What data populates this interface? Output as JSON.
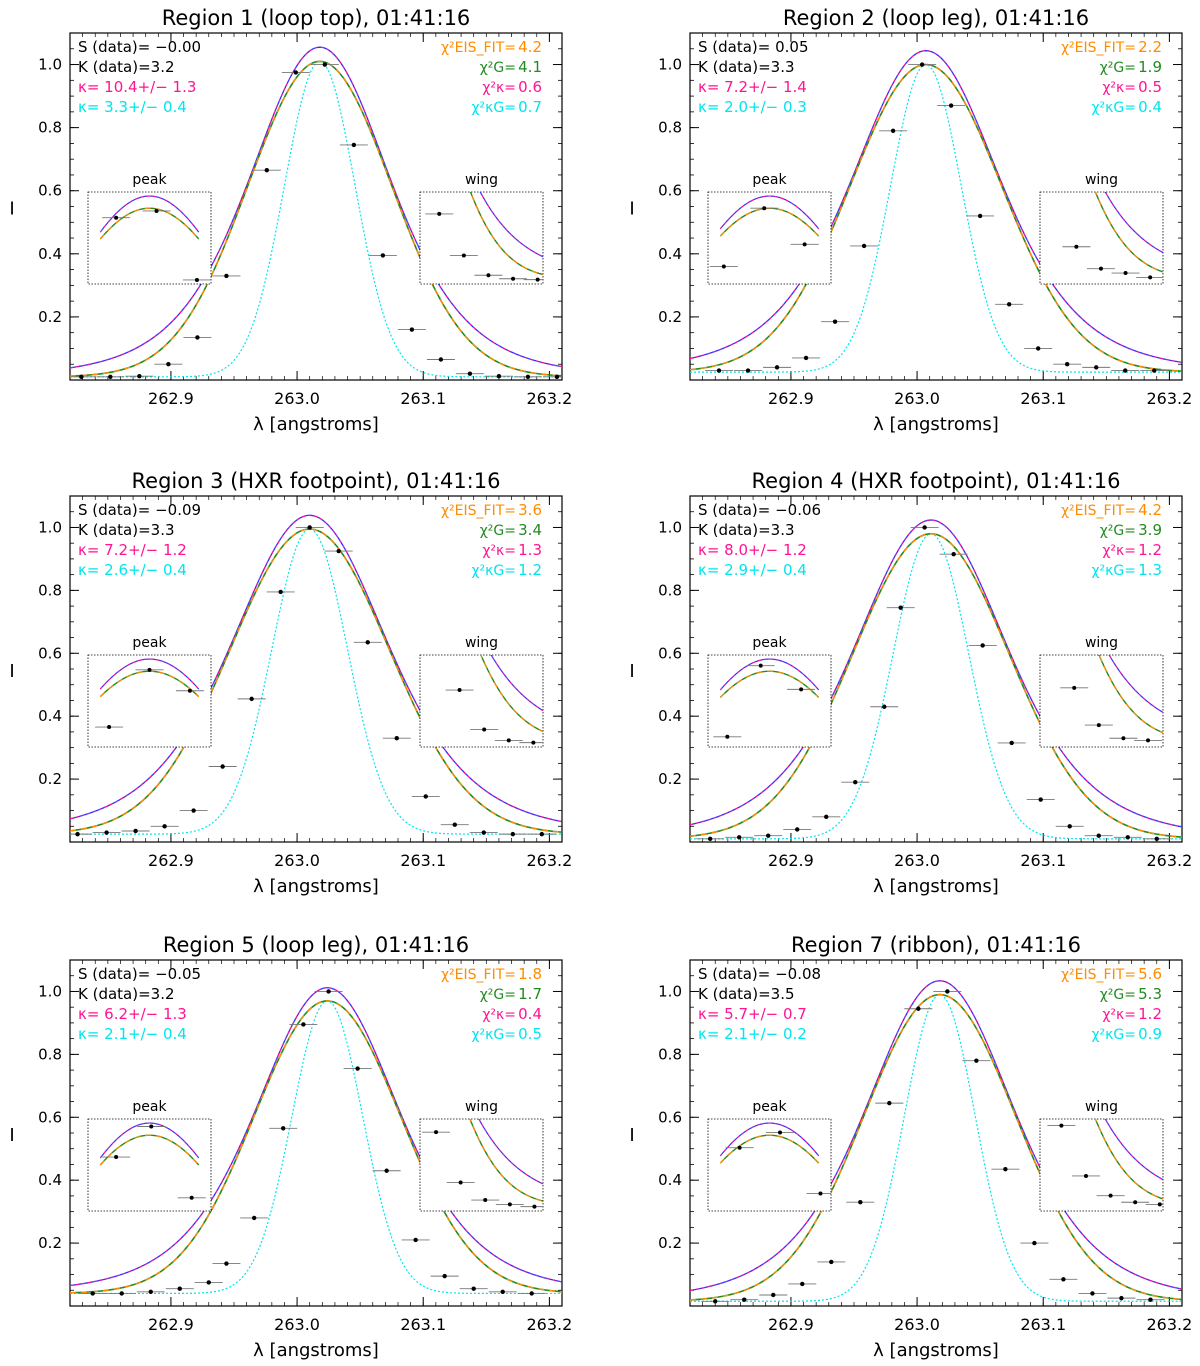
{
  "figure": {
    "ylabel": "I",
    "xlabel": "λ [angstroms]",
    "inset_peak_label": "peak",
    "inset_wing_label": "wing"
  },
  "colors": {
    "data": "#000000",
    "eis_fit": "#ff8c00",
    "gauss": "#228b22",
    "kappa": "#ff1493",
    "kappa_gauss": "#00e5ee",
    "kappa_curve": "#3030ff",
    "stats_black": "#000000"
  },
  "chart_data": [
    {
      "type": "line",
      "title": "Region 1 (loop top), 01:41:16",
      "xlabel": "λ [angstroms]",
      "ylabel": "I",
      "xlim": [
        262.82,
        263.21
      ],
      "ylim": [
        0.0,
        1.1
      ],
      "xticks": [
        "262.9",
        "263.0",
        "263.1",
        "263.2"
      ],
      "yticks": [
        "0.2",
        "0.4",
        "0.6",
        "0.8",
        "1.0"
      ],
      "stats": {
        "s_data": "S (data)= −0.00",
        "k_data": "K (data)=3.2",
        "kappa": "κ=  10.4+/−  1.3",
        "kappa_g": "κ=  3.3+/−  0.4",
        "chi_eis_label": "χ²EIS_FIT=",
        "chi_eis": "4.2",
        "chi_g_label": "χ²G=",
        "chi_g": "4.1",
        "chi_k_label": "χ²κ=",
        "chi_k": "0.6",
        "chi_kg_label": "χ²κG=",
        "chi_kg": "0.7"
      },
      "model": {
        "center": 263.018,
        "width": 0.057,
        "bg": 0.01,
        "amp": 1.0,
        "kg_width": 0.028
      },
      "data_points": [
        {
          "x": 262.829,
          "y": 0.01
        },
        {
          "x": 262.852,
          "y": 0.01
        },
        {
          "x": 262.875,
          "y": 0.012
        },
        {
          "x": 262.898,
          "y": 0.05
        },
        {
          "x": 262.921,
          "y": 0.135
        },
        {
          "x": 262.944,
          "y": 0.33
        },
        {
          "x": 262.976,
          "y": 0.665
        },
        {
          "x": 262.999,
          "y": 0.975
        },
        {
          "x": 263.022,
          "y": 1.0
        },
        {
          "x": 263.045,
          "y": 0.745
        },
        {
          "x": 263.068,
          "y": 0.395
        },
        {
          "x": 263.091,
          "y": 0.16
        },
        {
          "x": 263.114,
          "y": 0.065
        },
        {
          "x": 263.137,
          "y": 0.02
        },
        {
          "x": 263.16,
          "y": 0.012
        },
        {
          "x": 263.183,
          "y": 0.01
        },
        {
          "x": 263.206,
          "y": 0.01
        }
      ]
    },
    {
      "type": "line",
      "title": "Region 2 (loop leg), 01:41:16",
      "xlabel": "λ [angstroms]",
      "ylabel": "I",
      "xlim": [
        262.82,
        263.21
      ],
      "ylim": [
        0.0,
        1.1
      ],
      "xticks": [
        "262.9",
        "263.0",
        "263.1",
        "263.2"
      ],
      "yticks": [
        "0.2",
        "0.4",
        "0.6",
        "0.8",
        "1.0"
      ],
      "stats": {
        "s_data": "S (data)=  0.05",
        "k_data": "K (data)=3.3",
        "kappa": "κ=  7.2+/−  1.4",
        "kappa_g": "κ=  2.0+/−  0.3",
        "chi_eis_label": "χ²EIS_FIT=",
        "chi_eis": "2.2",
        "chi_g_label": "χ²G=",
        "chi_g": "1.9",
        "chi_k_label": "χ²κ=",
        "chi_k": "0.5",
        "chi_kg_label": "χ²κG=",
        "chi_kg": "0.4"
      },
      "model": {
        "center": 263.007,
        "width": 0.06,
        "bg": 0.025,
        "amp": 0.975,
        "kg_width": 0.028
      },
      "data_points": [
        {
          "x": 262.843,
          "y": 0.03
        },
        {
          "x": 262.866,
          "y": 0.03
        },
        {
          "x": 262.889,
          "y": 0.04
        },
        {
          "x": 262.912,
          "y": 0.07
        },
        {
          "x": 262.935,
          "y": 0.185
        },
        {
          "x": 262.958,
          "y": 0.425
        },
        {
          "x": 262.981,
          "y": 0.79
        },
        {
          "x": 263.004,
          "y": 1.0
        },
        {
          "x": 263.027,
          "y": 0.87
        },
        {
          "x": 263.05,
          "y": 0.52
        },
        {
          "x": 263.073,
          "y": 0.24
        },
        {
          "x": 263.096,
          "y": 0.1
        },
        {
          "x": 263.119,
          "y": 0.05
        },
        {
          "x": 263.142,
          "y": 0.04
        },
        {
          "x": 263.165,
          "y": 0.03
        },
        {
          "x": 263.188,
          "y": 0.03
        }
      ]
    },
    {
      "type": "line",
      "title": "Region 3 (HXR footpoint), 01:41:16",
      "xlabel": "λ [angstroms]",
      "ylabel": "I",
      "xlim": [
        262.82,
        263.21
      ],
      "ylim": [
        0.0,
        1.1
      ],
      "xticks": [
        "262.9",
        "263.0",
        "263.1",
        "263.2"
      ],
      "yticks": [
        "0.2",
        "0.4",
        "0.6",
        "0.8",
        "1.0"
      ],
      "stats": {
        "s_data": "S (data)= −0.09",
        "k_data": "K (data)=3.3",
        "kappa": "κ=  7.2+/−  1.2",
        "kappa_g": "κ=  2.6+/−  0.4",
        "chi_eis_label": "χ²EIS_FIT=",
        "chi_eis": "3.6",
        "chi_g_label": "χ²G=",
        "chi_g": "3.4",
        "chi_k_label": "χ²κ=",
        "chi_k": "1.3",
        "chi_kg_label": "χ²κG=",
        "chi_kg": "1.2"
      },
      "model": {
        "center": 263.01,
        "width": 0.063,
        "bg": 0.025,
        "amp": 0.97,
        "kg_width": 0.03
      },
      "data_points": [
        {
          "x": 262.826,
          "y": 0.025
        },
        {
          "x": 262.849,
          "y": 0.03
        },
        {
          "x": 262.872,
          "y": 0.035
        },
        {
          "x": 262.895,
          "y": 0.05
        },
        {
          "x": 262.918,
          "y": 0.1
        },
        {
          "x": 262.941,
          "y": 0.24
        },
        {
          "x": 262.964,
          "y": 0.455
        },
        {
          "x": 262.987,
          "y": 0.795
        },
        {
          "x": 263.01,
          "y": 1.0
        },
        {
          "x": 263.033,
          "y": 0.925
        },
        {
          "x": 263.056,
          "y": 0.635
        },
        {
          "x": 263.079,
          "y": 0.33
        },
        {
          "x": 263.102,
          "y": 0.145
        },
        {
          "x": 263.125,
          "y": 0.055
        },
        {
          "x": 263.148,
          "y": 0.03
        },
        {
          "x": 263.171,
          "y": 0.025
        },
        {
          "x": 263.194,
          "y": 0.025
        }
      ]
    },
    {
      "type": "line",
      "title": "Region 4 (HXR footpoint), 01:41:16",
      "xlabel": "λ [angstroms]",
      "ylabel": "I",
      "xlim": [
        262.82,
        263.21
      ],
      "ylim": [
        0.0,
        1.1
      ],
      "xticks": [
        "262.9",
        "263.0",
        "263.1",
        "263.2"
      ],
      "yticks": [
        "0.2",
        "0.4",
        "0.6",
        "0.8",
        "1.0"
      ],
      "stats": {
        "s_data": "S (data)= −0.06",
        "k_data": "K (data)=3.3",
        "kappa": "κ=  8.0+/−  1.2",
        "kappa_g": "κ=  2.9+/−  0.4",
        "chi_eis_label": "χ²EIS_FIT=",
        "chi_eis": "4.2",
        "chi_g_label": "χ²G=",
        "chi_g": "3.9",
        "chi_k_label": "χ²κ=",
        "chi_k": "1.2",
        "chi_kg_label": "χ²κG=",
        "chi_kg": "1.3"
      },
      "model": {
        "center": 263.011,
        "width": 0.062,
        "bg": 0.01,
        "amp": 0.97,
        "kg_width": 0.03
      },
      "data_points": [
        {
          "x": 262.836,
          "y": 0.01
        },
        {
          "x": 262.859,
          "y": 0.015
        },
        {
          "x": 262.882,
          "y": 0.02
        },
        {
          "x": 262.905,
          "y": 0.04
        },
        {
          "x": 262.928,
          "y": 0.08
        },
        {
          "x": 262.951,
          "y": 0.19
        },
        {
          "x": 262.974,
          "y": 0.43
        },
        {
          "x": 262.987,
          "y": 0.745
        },
        {
          "x": 263.006,
          "y": 1.0
        },
        {
          "x": 263.029,
          "y": 0.915
        },
        {
          "x": 263.052,
          "y": 0.625
        },
        {
          "x": 263.075,
          "y": 0.315
        },
        {
          "x": 263.098,
          "y": 0.135
        },
        {
          "x": 263.121,
          "y": 0.05
        },
        {
          "x": 263.144,
          "y": 0.02
        },
        {
          "x": 263.167,
          "y": 0.015
        },
        {
          "x": 263.19,
          "y": 0.01
        }
      ]
    },
    {
      "type": "line",
      "title": "Region 5 (loop leg), 01:41:16",
      "xlabel": "λ [angstroms]",
      "ylabel": "I",
      "xlim": [
        262.82,
        263.21
      ],
      "ylim": [
        0.0,
        1.1
      ],
      "xticks": [
        "262.9",
        "263.0",
        "263.1",
        "263.2"
      ],
      "yticks": [
        "0.2",
        "0.4",
        "0.6",
        "0.8",
        "1.0"
      ],
      "stats": {
        "s_data": "S (data)= −0.05",
        "k_data": "K (data)=3.2",
        "kappa": "κ=  6.2+/−  1.3",
        "kappa_g": "κ=  2.1+/−  0.4",
        "chi_eis_label": "χ²EIS_FIT=",
        "chi_eis": "1.8",
        "chi_g_label": "χ²G=",
        "chi_g": "1.7",
        "chi_k_label": "χ²κ=",
        "chi_k": "0.4",
        "chi_kg_label": "χ²κG=",
        "chi_kg": "0.5"
      },
      "model": {
        "center": 263.024,
        "width": 0.058,
        "bg": 0.04,
        "amp": 0.93,
        "kg_width": 0.028
      },
      "data_points": [
        {
          "x": 262.838,
          "y": 0.04
        },
        {
          "x": 262.861,
          "y": 0.04
        },
        {
          "x": 262.884,
          "y": 0.045
        },
        {
          "x": 262.907,
          "y": 0.055
        },
        {
          "x": 262.93,
          "y": 0.075
        },
        {
          "x": 262.944,
          "y": 0.135
        },
        {
          "x": 262.966,
          "y": 0.28
        },
        {
          "x": 262.989,
          "y": 0.565
        },
        {
          "x": 263.005,
          "y": 0.895
        },
        {
          "x": 263.025,
          "y": 1.0
        },
        {
          "x": 263.048,
          "y": 0.755
        },
        {
          "x": 263.071,
          "y": 0.43
        },
        {
          "x": 263.094,
          "y": 0.21
        },
        {
          "x": 263.117,
          "y": 0.095
        },
        {
          "x": 263.14,
          "y": 0.055
        },
        {
          "x": 263.163,
          "y": 0.045
        },
        {
          "x": 263.186,
          "y": 0.04
        }
      ]
    },
    {
      "type": "line",
      "title": "Region 7 (ribbon), 01:41:16",
      "xlabel": "λ [angstroms]",
      "ylabel": "I",
      "xlim": [
        262.82,
        263.21
      ],
      "ylim": [
        0.0,
        1.1
      ],
      "xticks": [
        "262.9",
        "263.0",
        "263.1",
        "263.2"
      ],
      "yticks": [
        "0.2",
        "0.4",
        "0.6",
        "0.8",
        "1.0"
      ],
      "stats": {
        "s_data": "S (data)= −0.08",
        "k_data": "K (data)=3.5",
        "kappa": "κ=  5.7+/−  0.7",
        "kappa_g": "κ=  2.1+/−  0.2",
        "chi_eis_label": "χ²EIS_FIT=",
        "chi_eis": "5.6",
        "chi_g_label": "χ²G=",
        "chi_g": "5.3",
        "chi_k_label": "χ²κ=",
        "chi_k": "1.2",
        "chi_kg_label": "χ²κG=",
        "chi_kg": "0.9"
      },
      "model": {
        "center": 263.018,
        "width": 0.06,
        "bg": 0.015,
        "amp": 0.975,
        "kg_width": 0.028
      },
      "data_points": [
        {
          "x": 262.84,
          "y": 0.015
        },
        {
          "x": 262.863,
          "y": 0.02
        },
        {
          "x": 262.886,
          "y": 0.035
        },
        {
          "x": 262.909,
          "y": 0.07
        },
        {
          "x": 262.932,
          "y": 0.14
        },
        {
          "x": 262.955,
          "y": 0.33
        },
        {
          "x": 262.978,
          "y": 0.645
        },
        {
          "x": 263.001,
          "y": 0.945
        },
        {
          "x": 263.024,
          "y": 1.0
        },
        {
          "x": 263.047,
          "y": 0.78
        },
        {
          "x": 263.07,
          "y": 0.435
        },
        {
          "x": 263.093,
          "y": 0.2
        },
        {
          "x": 263.116,
          "y": 0.085
        },
        {
          "x": 263.139,
          "y": 0.04
        },
        {
          "x": 263.162,
          "y": 0.025
        },
        {
          "x": 263.185,
          "y": 0.02
        }
      ]
    }
  ]
}
